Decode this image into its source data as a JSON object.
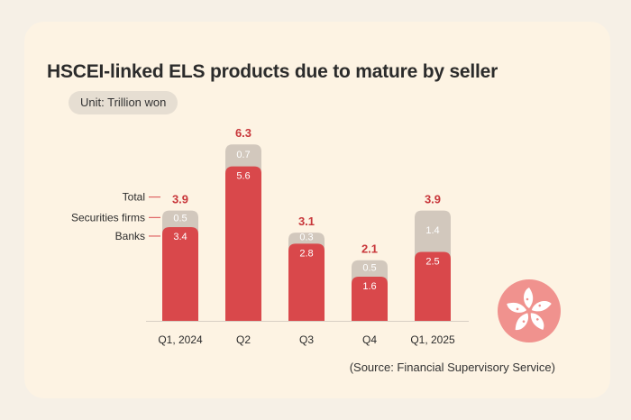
{
  "card": {
    "title": "HSCEI-linked ELS products due to mature by seller",
    "unit": "Unit: Trillion won",
    "source": "(Source: Financial Supervisory Service)"
  },
  "colors": {
    "background": "#fdf3e3",
    "banks": "#d9484b",
    "securities": "#d2c8bd",
    "total_label": "#c8363a",
    "badge": "#f0928e"
  },
  "chart_data": {
    "type": "bar",
    "stacked": true,
    "title": "HSCEI-linked ELS products due to mature by seller",
    "ylabel": "Trillion won",
    "categories": [
      "Q1, 2024",
      "Q2",
      "Q3",
      "Q4",
      "Q1, 2025"
    ],
    "series": [
      {
        "name": "Banks",
        "values": [
          3.4,
          5.6,
          2.8,
          1.6,
          2.5
        ]
      },
      {
        "name": "Securities firms",
        "values": [
          0.5,
          0.7,
          0.3,
          0.5,
          1.4
        ]
      }
    ],
    "totals": [
      "3.9",
      "6.3",
      "3.1",
      "2.1",
      "3.9"
    ],
    "value_labels": {
      "Banks": [
        "3.4",
        "5.6",
        "2.8",
        "1.6",
        "2.5"
      ],
      "Securities firms": [
        "0.5",
        "0.7",
        "0.3",
        "0.5",
        "1.4"
      ]
    },
    "legend": {
      "total": "Total",
      "securities": "Securities firms",
      "banks": "Banks"
    },
    "legend_position": "left of first bar",
    "ylim": [
      0,
      6.3
    ],
    "grid": false
  },
  "badge": {
    "icon": "bauhinia-flower-icon"
  }
}
